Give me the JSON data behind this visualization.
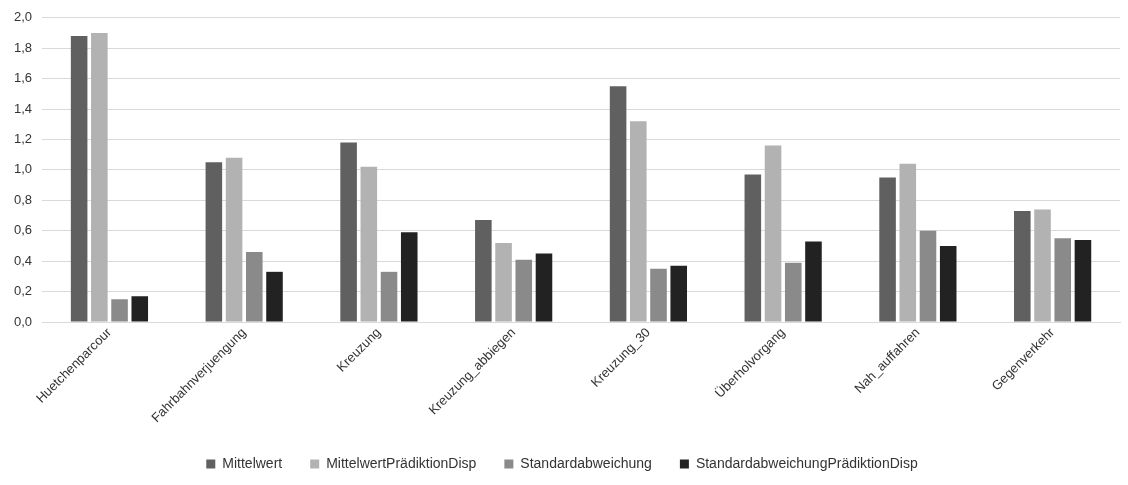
{
  "chart_data": {
    "type": "bar",
    "categories": [
      "Huetchenparcour",
      "Fahrbahnverjuengung",
      "Kreuzung",
      "Kreuzung_abbiegen",
      "Kreuzung_30",
      "Überholvorgang",
      "Nah_auffahren",
      "Gegenverkehr"
    ],
    "series": [
      {
        "name": "Mittelwert",
        "color": "#606060",
        "values": [
          1.88,
          1.05,
          1.18,
          0.67,
          1.55,
          0.97,
          0.95,
          0.73
        ]
      },
      {
        "name": "MittelwertPrädiktionDisp",
        "color": "#b2b2b2",
        "values": [
          1.9,
          1.08,
          1.02,
          0.52,
          1.32,
          1.16,
          1.04,
          0.74
        ]
      },
      {
        "name": "Standardabweichung",
        "color": "#8a8a8a",
        "values": [
          0.15,
          0.46,
          0.33,
          0.41,
          0.35,
          0.39,
          0.6,
          0.55
        ]
      },
      {
        "name": "StandardabweichungPrädiktionDisp",
        "color": "#222222",
        "values": [
          0.17,
          0.33,
          0.59,
          0.45,
          0.37,
          0.53,
          0.5,
          0.54
        ]
      }
    ],
    "ylim": [
      0,
      2
    ],
    "yticks": [
      {
        "value": 0,
        "label": "0,0"
      },
      {
        "value": 0.2,
        "label": "0,2"
      },
      {
        "value": 0.4,
        "label": "0,4"
      },
      {
        "value": 0.6,
        "label": "0,6"
      },
      {
        "value": 0.8,
        "label": "0,8"
      },
      {
        "value": 1,
        "label": "1,0"
      },
      {
        "value": 1.2,
        "label": "1,2"
      },
      {
        "value": 1.4,
        "label": "1,4"
      },
      {
        "value": 1.6,
        "label": "1,6"
      },
      {
        "value": 1.8,
        "label": "1,8"
      },
      {
        "value": 2,
        "label": "2,0"
      }
    ],
    "grid": "y",
    "legend": "bottom"
  }
}
